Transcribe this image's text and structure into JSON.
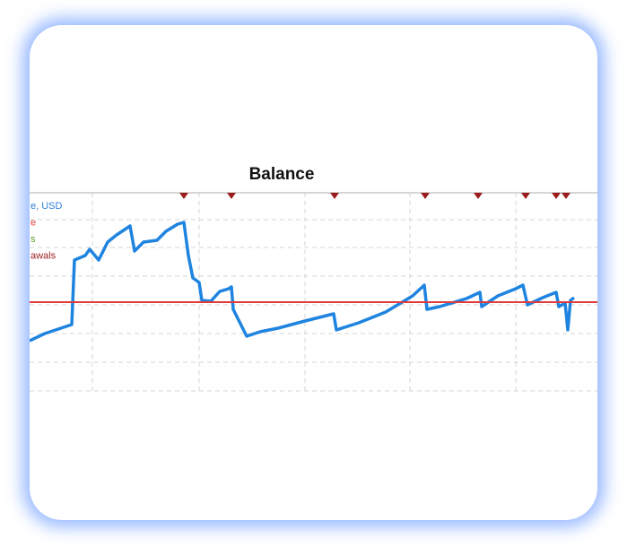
{
  "chart_data": {
    "type": "line",
    "title": "Balance",
    "legend": [
      {
        "label": "e, USD",
        "color": "#2f7fd6"
      },
      {
        "label": "e",
        "color": "#e04040"
      },
      {
        "label": "s",
        "color": "#5aa02c"
      },
      {
        "label": "awals",
        "color": "#9b1c1c"
      }
    ],
    "xlim": [
      0,
      633
    ],
    "ylim": [
      0,
      225
    ],
    "xticks": [
      70,
      189,
      307,
      424,
      542
    ],
    "yticks": [
      4,
      36,
      68,
      100,
      132,
      164,
      195
    ],
    "grid": true,
    "series": [
      {
        "color": "#1f84e0",
        "x": [
          0,
          17,
          47,
          50,
          62,
          67,
          77,
          87,
          97,
          112,
          117,
          127,
          142,
          152,
          165,
          172,
          177,
          182,
          189,
          192,
          202,
          212,
          222,
          225,
          227,
          232,
          242,
          257,
          277,
          307,
          339,
          342,
          367,
          397,
          427,
          440,
          443,
          457,
          487,
          502,
          504,
          522,
          542,
          550,
          555,
          572,
          587,
          590,
          597,
          600,
          603,
          607
        ],
        "values": [
          60,
          68,
          78,
          150,
          155,
          162,
          150,
          170,
          178,
          188,
          160,
          170,
          172,
          182,
          190,
          192,
          155,
          130,
          125,
          105,
          104,
          115,
          118,
          120,
          95,
          85,
          65,
          70,
          74,
          82,
          90,
          72,
          80,
          92,
          110,
          122,
          95,
          98,
          107,
          114,
          98,
          110,
          118,
          122,
          100,
          108,
          114,
          98,
          102,
          72,
          105,
          108
        ]
      },
      {
        "color": "#e03a3a",
        "x": [
          0,
          633
        ],
        "values": [
          103,
          103
        ]
      }
    ],
    "withdrawals": {
      "color": "#9b1c1c",
      "x": [
        172,
        225,
        340,
        441,
        500,
        553,
        587,
        598
      ]
    }
  }
}
